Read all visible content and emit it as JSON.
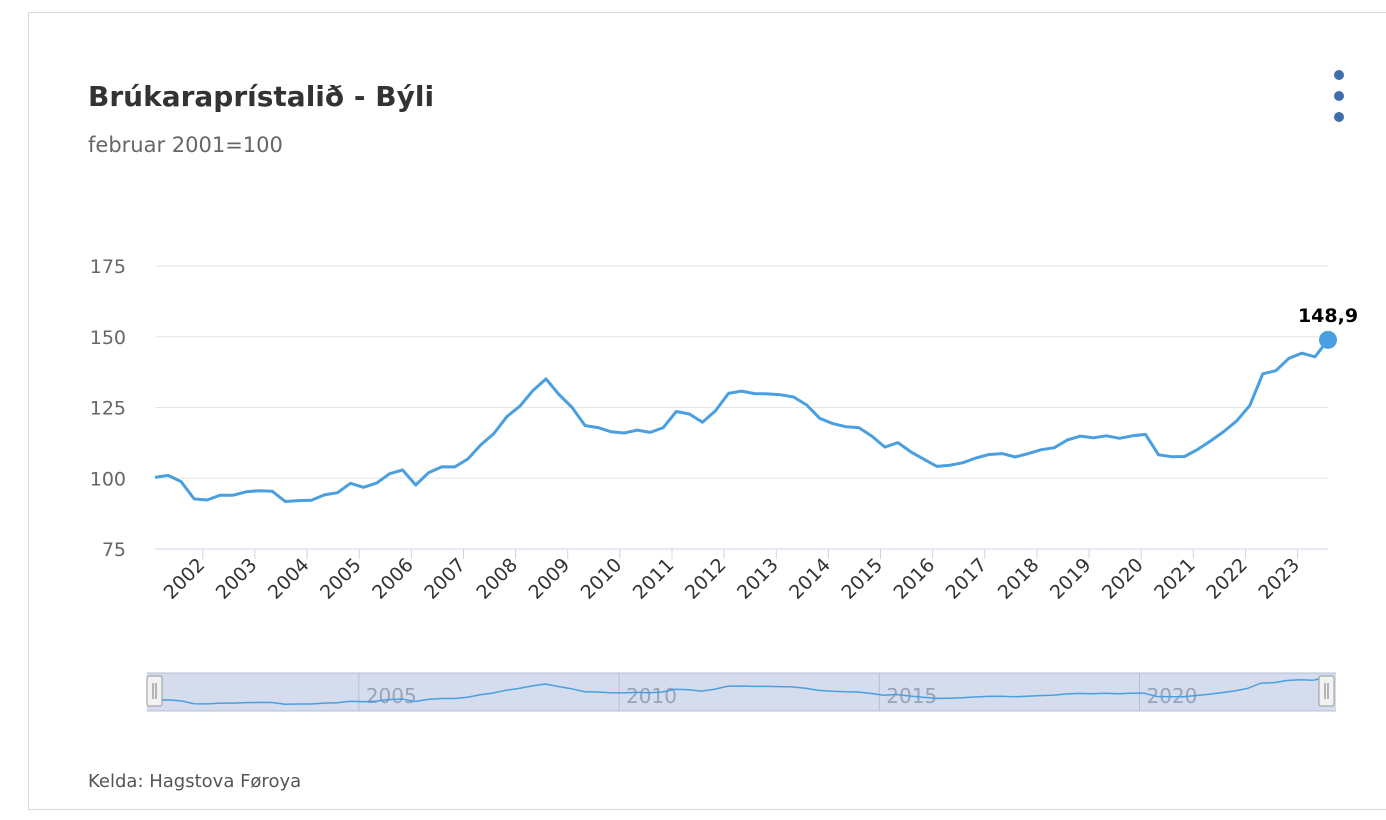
{
  "title": "Brúkaraprístalið - Býli",
  "subtitle": "februar 2001=100",
  "source": "Kelda: Hagstova Føroya",
  "menu_icon": "more-vertical-icon",
  "colors": {
    "line": "#4a9fe0",
    "grid": "#e6e6e6",
    "navigator_fill": "#ccd6eb",
    "menu": "#3f6ea8"
  },
  "chart_data": {
    "type": "line",
    "title": "Brúkaraprístalið - Býli",
    "subtitle": "februar 2001=100",
    "xlabel": "",
    "ylabel": "",
    "ylim": [
      75,
      175
    ],
    "y_ticks": [
      75,
      100,
      125,
      150,
      175
    ],
    "x_ticks": [
      "2002",
      "2003",
      "2004",
      "2005",
      "2006",
      "2007",
      "2008",
      "2009",
      "2010",
      "2011",
      "2012",
      "2013",
      "2014",
      "2015",
      "2016",
      "2017",
      "2018",
      "2019",
      "2020",
      "2021",
      "2022",
      "2023"
    ],
    "grid": true,
    "legend": "none",
    "last_value_label": "148,9",
    "navigator_labels": [
      "2005",
      "2010",
      "2015",
      "2020"
    ],
    "series": [
      {
        "x": [
          "2001-02",
          "2001-05",
          "2001-08",
          "2001-11",
          "2002-02",
          "2002-05",
          "2002-08",
          "2002-11",
          "2003-02",
          "2003-05",
          "2003-08",
          "2003-11",
          "2004-02",
          "2004-05",
          "2004-08",
          "2004-11",
          "2005-02",
          "2005-05",
          "2005-08",
          "2005-11",
          "2006-02",
          "2006-05",
          "2006-08",
          "2006-11",
          "2007-02",
          "2007-05",
          "2007-08",
          "2007-11",
          "2008-02",
          "2008-05",
          "2008-08",
          "2008-11",
          "2009-02",
          "2009-05",
          "2009-08",
          "2009-11",
          "2010-02",
          "2010-05",
          "2010-08",
          "2010-11",
          "2011-02",
          "2011-05",
          "2011-08",
          "2011-11",
          "2012-02",
          "2012-05",
          "2012-08",
          "2012-11",
          "2013-02",
          "2013-05",
          "2013-08",
          "2013-11",
          "2014-02",
          "2014-05",
          "2014-08",
          "2014-11",
          "2015-02",
          "2015-05",
          "2015-08",
          "2015-11",
          "2016-02",
          "2016-05",
          "2016-08",
          "2016-11",
          "2017-02",
          "2017-05",
          "2017-08",
          "2017-11",
          "2018-02",
          "2018-05",
          "2018-08",
          "2018-11",
          "2019-02",
          "2019-05",
          "2019-08",
          "2019-11",
          "2020-02",
          "2020-05",
          "2020-08",
          "2020-11",
          "2021-02",
          "2021-05",
          "2021-08",
          "2021-11",
          "2022-02",
          "2022-05",
          "2022-08",
          "2022-11",
          "2023-02",
          "2023-05",
          "2023-08"
        ],
        "values": [
          100.3,
          101,
          98.8,
          92.7,
          92.3,
          94,
          94,
          95.2,
          95.6,
          95.4,
          91.8,
          92.1,
          92.2,
          94.1,
          94.9,
          98.2,
          96.8,
          98.3,
          101.6,
          102.9,
          97.6,
          102,
          104,
          104,
          106.8,
          111.8,
          115.8,
          121.8,
          125.5,
          131,
          135.1,
          129.6,
          125,
          118.6,
          117.9,
          116.4,
          116,
          117,
          116.2,
          117.9,
          123.6,
          122.7,
          119.8,
          123.8,
          130,
          130.8,
          129.9,
          129.8,
          129.5,
          128.7,
          125.9,
          121.2,
          119.3,
          118.2,
          117.9,
          114.9,
          111,
          112.6,
          109.3,
          106.7,
          104.2,
          104.6,
          105.5,
          107.2,
          108.4,
          108.7,
          107.5,
          108.7,
          110.1,
          110.8,
          113.5,
          114.9,
          114.3,
          115,
          114.1,
          115,
          115.5,
          108.3,
          107.6,
          107.7,
          110.2,
          113.2,
          116.5,
          120.3,
          125.7,
          136.9,
          138,
          142.4,
          144.2,
          142.9,
          148.9
        ]
      }
    ]
  }
}
